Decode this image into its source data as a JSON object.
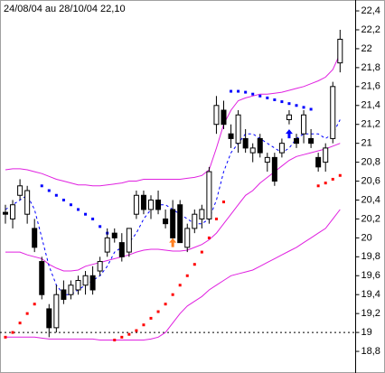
{
  "chart_data": {
    "type": "candlestick",
    "title": "24/08/04 au 28/10/04  22,10",
    "ylim": [
      18.6,
      22.515
    ],
    "yticks": [
      {
        "value": 18.8,
        "label": "18,8"
      },
      19,
      {
        "value": 19.2,
        "label": "19,2"
      },
      {
        "value": 19.4,
        "label": "19,4"
      },
      {
        "value": 19.6,
        "label": "19,6"
      },
      {
        "value": 19.8,
        "label": "19,8"
      },
      20,
      {
        "value": 20.2,
        "label": "20,2"
      },
      {
        "value": 20.4,
        "label": "20,4"
      },
      {
        "value": 20.6,
        "label": "20,6"
      },
      {
        "value": 20.8,
        "label": "20,8"
      },
      21,
      {
        "value": 21.2,
        "label": "21,2"
      },
      {
        "value": 21.4,
        "label": "21,4"
      },
      {
        "value": 21.6,
        "label": "21,6"
      },
      {
        "value": 21.8,
        "label": "21,8"
      },
      22,
      {
        "value": 22.2,
        "label": "22,2"
      },
      {
        "value": 22.4,
        "label": "22,4"
      }
    ],
    "grid": false,
    "up_color": "#ffffff",
    "down_color": "#000000",
    "open": [
      20.27,
      20.2,
      20.45,
      20.25,
      20.1,
      19.75,
      19.25,
      19.05,
      19.45,
      19.4,
      19.45,
      19.5,
      19.6,
      19.65,
      19.85,
      20.05,
      19.95,
      19.85,
      20.25,
      20.45,
      20.3,
      20.4,
      20.2,
      20.3,
      20.35,
      19.9,
      20.1,
      20.2,
      20.2,
      21.2,
      21.35,
      21.1,
      21.0,
      21.05,
      20.9,
      21.05,
      20.8,
      20.85,
      20.9,
      21.25,
      21.05,
      21.1,
      21.05,
      20.85,
      20.8,
      21.05,
      21.85
    ],
    "high": [
      20.35,
      20.4,
      20.62,
      20.55,
      20.2,
      19.8,
      19.3,
      19.5,
      19.55,
      19.55,
      19.6,
      19.65,
      19.7,
      19.8,
      20.1,
      20.1,
      20.05,
      20.1,
      20.5,
      20.5,
      20.45,
      20.5,
      20.3,
      20.4,
      20.4,
      20.15,
      20.3,
      20.35,
      20.75,
      21.5,
      21.45,
      21.2,
      21.35,
      21.15,
      21.0,
      21.1,
      20.9,
      20.9,
      21.05,
      21.35,
      21.1,
      21.35,
      21.15,
      20.9,
      21.0,
      21.65,
      22.2
    ],
    "low": [
      20.15,
      20.1,
      20.4,
      20.15,
      19.85,
      19.35,
      18.95,
      19.0,
      19.3,
      19.35,
      19.4,
      19.4,
      19.4,
      19.6,
      19.8,
      19.95,
      19.75,
      19.8,
      20.2,
      20.25,
      20.2,
      20.25,
      20.1,
      19.95,
      19.95,
      19.85,
      20.05,
      20.1,
      20.15,
      21.1,
      21.15,
      20.95,
      20.9,
      20.9,
      20.8,
      20.85,
      20.7,
      20.55,
      20.85,
      21.2,
      20.95,
      21.0,
      20.95,
      20.7,
      20.7,
      21.0,
      21.75
    ],
    "close": [
      20.25,
      20.35,
      20.55,
      20.5,
      19.9,
      19.4,
      19.05,
      19.4,
      19.35,
      19.5,
      19.55,
      19.6,
      19.45,
      19.75,
      20.0,
      20.0,
      19.8,
      20.1,
      20.45,
      20.3,
      20.4,
      20.3,
      20.15,
      20.0,
      19.95,
      20.1,
      20.25,
      20.3,
      20.7,
      21.4,
      21.2,
      21.05,
      21.3,
      20.95,
      20.95,
      20.9,
      20.85,
      20.6,
      21.0,
      21.3,
      21.0,
      21.3,
      21.0,
      20.75,
      20.95,
      21.6,
      22.1
    ],
    "bands": {
      "color": "#e020e0",
      "upper": [
        20.72,
        20.73,
        20.73,
        20.72,
        20.7,
        20.68,
        20.65,
        20.62,
        20.6,
        20.58,
        20.56,
        20.56,
        20.55,
        20.55,
        20.56,
        20.57,
        20.58,
        20.6,
        20.6,
        20.62,
        20.62,
        20.62,
        20.62,
        20.62,
        20.62,
        20.63,
        20.64,
        20.66,
        20.72,
        20.95,
        21.2,
        21.35,
        21.45,
        21.48,
        21.5,
        21.52,
        21.52,
        21.53,
        21.54,
        21.56,
        21.58,
        21.6,
        21.63,
        21.66,
        21.7,
        21.78,
        21.95
      ],
      "middle": [
        19.85,
        19.85,
        19.85,
        19.82,
        19.8,
        19.78,
        19.72,
        19.68,
        19.65,
        19.65,
        19.66,
        19.7,
        19.72,
        19.74,
        19.76,
        19.78,
        19.8,
        19.82,
        19.85,
        19.87,
        19.88,
        19.88,
        19.87,
        19.86,
        19.86,
        19.87,
        19.9,
        19.93,
        19.98,
        20.05,
        20.15,
        20.25,
        20.35,
        20.45,
        20.5,
        20.58,
        20.64,
        20.7,
        20.76,
        20.82,
        20.86,
        20.88,
        20.9,
        20.92,
        20.94,
        20.97,
        21.0
      ],
      "lower": [
        18.95,
        18.95,
        18.95,
        18.95,
        18.95,
        18.94,
        18.93,
        18.93,
        18.93,
        18.93,
        18.93,
        18.93,
        18.93,
        18.92,
        18.92,
        18.92,
        18.92,
        18.92,
        18.92,
        18.92,
        18.93,
        18.95,
        19.0,
        19.1,
        19.2,
        19.28,
        19.33,
        19.38,
        19.45,
        19.5,
        19.55,
        19.6,
        19.62,
        19.64,
        19.66,
        19.7,
        19.74,
        19.78,
        19.82,
        19.86,
        19.9,
        19.95,
        20.0,
        20.05,
        20.1,
        20.2,
        20.3
      ]
    },
    "ma": {
      "color": "#0000ff",
      "values": [
        20.3,
        20.35,
        20.4,
        20.45,
        20.3,
        20.0,
        19.7,
        19.5,
        19.4,
        19.4,
        19.45,
        19.5,
        19.55,
        19.6,
        19.7,
        19.85,
        19.9,
        19.95,
        20.05,
        20.2,
        20.3,
        20.35,
        20.35,
        20.3,
        20.25,
        20.2,
        20.15,
        20.15,
        20.2,
        20.4,
        20.7,
        20.9,
        21.0,
        21.1,
        21.1,
        21.05,
        21.0,
        20.95,
        20.9,
        20.95,
        21.05,
        21.1,
        21.1,
        21.1,
        21.05,
        21.1,
        21.25
      ]
    },
    "sar": {
      "up_color": "#ff0000",
      "down_color": "#0000ff",
      "up": [
        18.95,
        19.0,
        19.1,
        19.2,
        19.3,
        null,
        null,
        null,
        null,
        null,
        null,
        null,
        null,
        null,
        null,
        18.92,
        18.95,
        18.98,
        19.02,
        19.08,
        19.15,
        19.22,
        19.3,
        19.4,
        19.5,
        19.6,
        19.72,
        19.85,
        20.0,
        20.2,
        20.38,
        null,
        null,
        null,
        null,
        null,
        null,
        null,
        null,
        null,
        null,
        null,
        null,
        20.55,
        20.58,
        20.62,
        20.66
      ],
      "down": [
        null,
        null,
        null,
        null,
        null,
        20.55,
        20.5,
        20.45,
        20.4,
        20.35,
        20.3,
        20.25,
        20.2,
        20.12,
        20.05,
        null,
        null,
        null,
        null,
        null,
        null,
        null,
        null,
        null,
        null,
        null,
        null,
        null,
        null,
        null,
        null,
        21.55,
        21.55,
        21.54,
        21.52,
        21.5,
        21.48,
        21.46,
        21.44,
        21.42,
        21.4,
        21.38,
        21.36,
        null,
        null,
        null,
        null
      ]
    },
    "hline": {
      "value": 19,
      "color": "#000000"
    },
    "arrows": [
      {
        "index": 23,
        "value": 19.95,
        "color": "#ff8020"
      },
      {
        "index": 39,
        "value": 21.1,
        "color": "#0000ff"
      }
    ]
  }
}
